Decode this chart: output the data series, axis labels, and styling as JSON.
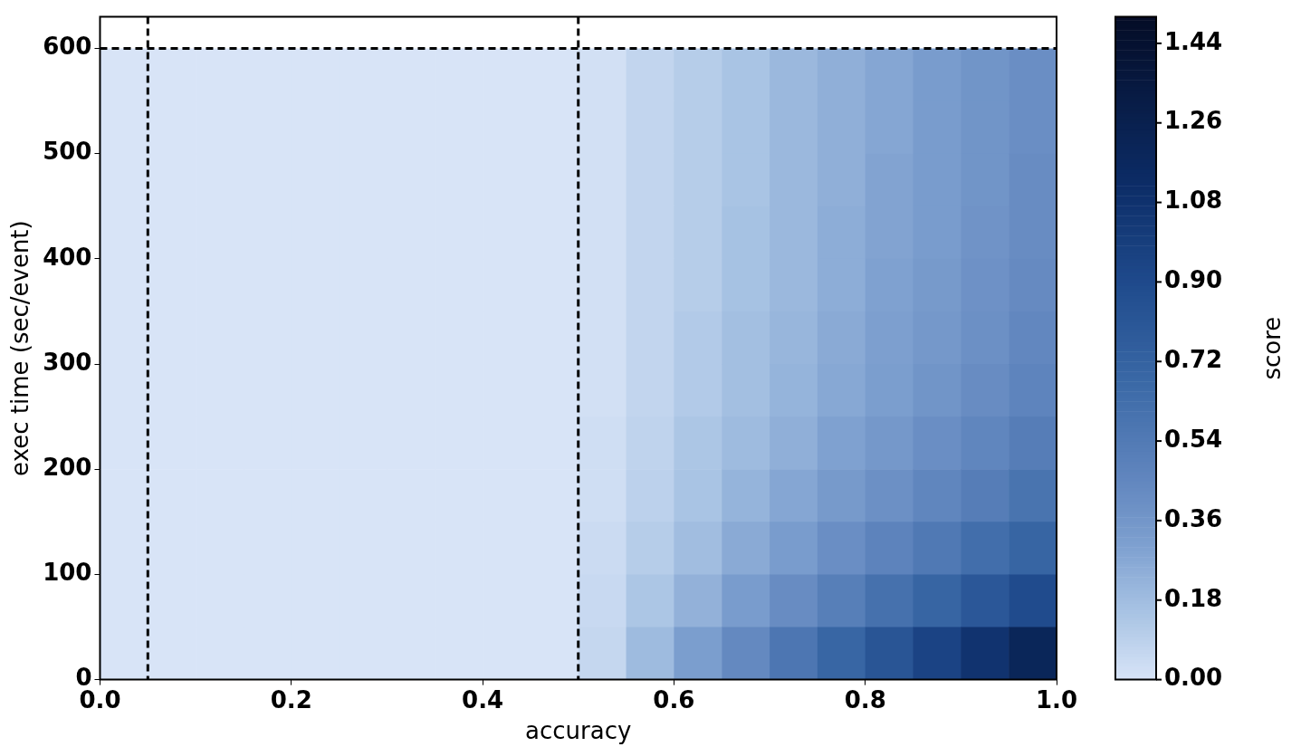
{
  "chart_data": {
    "type": "heatmap",
    "xlabel": "accuracy",
    "ylabel": "exec time (sec/event)",
    "clabel": "score",
    "x": [
      0.025,
      0.075,
      0.125,
      0.175,
      0.225,
      0.275,
      0.325,
      0.375,
      0.425,
      0.475,
      0.525,
      0.575,
      0.625,
      0.675,
      0.725,
      0.775,
      0.825,
      0.875,
      0.925,
      0.975
    ],
    "y": [
      575,
      525,
      475,
      425,
      375,
      325,
      275,
      225,
      175,
      125,
      75,
      25
    ],
    "xlim": [
      0,
      1
    ],
    "ylim": [
      0,
      630
    ],
    "xticks": [
      {
        "value": 0,
        "label": "0.0"
      },
      0.2,
      0.4,
      0.6,
      0.8,
      {
        "value": 1,
        "label": "1.0"
      }
    ],
    "yticks": [
      0,
      100,
      200,
      300,
      400,
      500,
      600
    ],
    "clim": [
      0,
      1.5
    ],
    "cticks": [
      {
        "value": 0,
        "label": "0.00"
      },
      0.18,
      0.36,
      0.54,
      0.72,
      {
        "value": 0.9,
        "label": "0.90"
      },
      1.08,
      1.26,
      1.44
    ],
    "ref_lines": [
      {
        "axis": "x",
        "value": 0.05,
        "color": "#000000",
        "line_style": "dashed"
      },
      {
        "axis": "x",
        "value": 0.5,
        "color": "#000000",
        "line_style": "dashed"
      },
      {
        "axis": "y",
        "value": 600,
        "color": "#000000",
        "line_style": "dashed"
      }
    ],
    "cells": [
      [
        0,
        0,
        0,
        0,
        0,
        0,
        0,
        0,
        0,
        0,
        0.02,
        0.07,
        0.11,
        0.15,
        0.2,
        0.24,
        0.28,
        0.33,
        0.37,
        0.41
      ],
      [
        0,
        0,
        0,
        0,
        0,
        0,
        0,
        0,
        0,
        0,
        0.02,
        0.07,
        0.11,
        0.15,
        0.2,
        0.24,
        0.28,
        0.33,
        0.37,
        0.41
      ],
      [
        0,
        0,
        0,
        0,
        0,
        0,
        0,
        0,
        0,
        0,
        0.02,
        0.07,
        0.11,
        0.15,
        0.2,
        0.24,
        0.29,
        0.33,
        0.37,
        0.42
      ],
      [
        0,
        0,
        0,
        0,
        0,
        0,
        0,
        0,
        0,
        0,
        0.02,
        0.07,
        0.11,
        0.16,
        0.2,
        0.25,
        0.29,
        0.33,
        0.38,
        0.42
      ],
      [
        0,
        0,
        0,
        0,
        0,
        0,
        0,
        0,
        0,
        0,
        0.02,
        0.07,
        0.11,
        0.16,
        0.2,
        0.25,
        0.3,
        0.34,
        0.39,
        0.43
      ],
      [
        0,
        0,
        0,
        0,
        0,
        0,
        0,
        0,
        0,
        0,
        0.02,
        0.07,
        0.12,
        0.17,
        0.21,
        0.26,
        0.31,
        0.35,
        0.4,
        0.45
      ],
      [
        0,
        0,
        0,
        0,
        0,
        0,
        0,
        0,
        0,
        0,
        0.02,
        0.07,
        0.12,
        0.17,
        0.22,
        0.27,
        0.32,
        0.37,
        0.42,
        0.47
      ],
      [
        0,
        0,
        0,
        0,
        0,
        0,
        0,
        0,
        0,
        0,
        0.03,
        0.08,
        0.14,
        0.19,
        0.24,
        0.3,
        0.35,
        0.41,
        0.46,
        0.52
      ],
      [
        0,
        0,
        0,
        0,
        0,
        0,
        0,
        0,
        0,
        0,
        0.03,
        0.09,
        0.15,
        0.22,
        0.28,
        0.34,
        0.4,
        0.46,
        0.52,
        0.59
      ],
      [
        0,
        0,
        0,
        0,
        0,
        0,
        0,
        0,
        0,
        0,
        0.04,
        0.11,
        0.18,
        0.26,
        0.33,
        0.41,
        0.48,
        0.55,
        0.63,
        0.7
      ],
      [
        0,
        0,
        0,
        0,
        0,
        0,
        0,
        0,
        0,
        0,
        0.05,
        0.14,
        0.23,
        0.33,
        0.42,
        0.51,
        0.61,
        0.7,
        0.8,
        0.89
      ],
      [
        0,
        0,
        0,
        0,
        0,
        0,
        0,
        0,
        0,
        0,
        0.06,
        0.19,
        0.32,
        0.44,
        0.57,
        0.69,
        0.82,
        0.95,
        1.07,
        1.2
      ]
    ]
  }
}
